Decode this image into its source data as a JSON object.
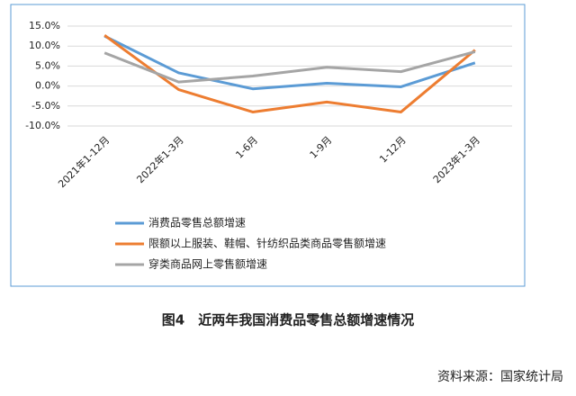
{
  "chart_data": {
    "type": "line",
    "categories": [
      "2021年1-12月",
      "2022年1-3月",
      "1-6月",
      "1-9月",
      "1-12月",
      "2023年1-3月"
    ],
    "series": [
      {
        "name": "消费品零售总额增速",
        "color": "#5b9bd5",
        "values": [
          12.5,
          3.3,
          -0.7,
          0.7,
          -0.2,
          5.8
        ]
      },
      {
        "name": "限额以上服装、鞋帽、针纺织品类商品零售额增速",
        "color": "#ed7d31",
        "values": [
          12.7,
          -0.9,
          -6.5,
          -4.0,
          -6.5,
          9.0
        ]
      },
      {
        "name": "穿类商品网上零售额增速",
        "color": "#a5a5a5",
        "values": [
          8.3,
          1.0,
          2.5,
          4.7,
          3.6,
          8.6
        ]
      }
    ],
    "ylim": [
      -10,
      15
    ],
    "yticks": [
      {
        "value": -10,
        "label": "-10.0%"
      },
      {
        "value": -5,
        "label": "-5.0%"
      },
      {
        "value": 0,
        "label": "0.0%"
      },
      {
        "value": 5,
        "label": "5.0%"
      },
      {
        "value": 10,
        "label": "10.0%"
      },
      {
        "value": 15,
        "label": "15.0%"
      }
    ],
    "grid": true
  },
  "caption": "图4　近两年我国消费品零售总额增速情况",
  "source": "资料来源：国家统计局"
}
